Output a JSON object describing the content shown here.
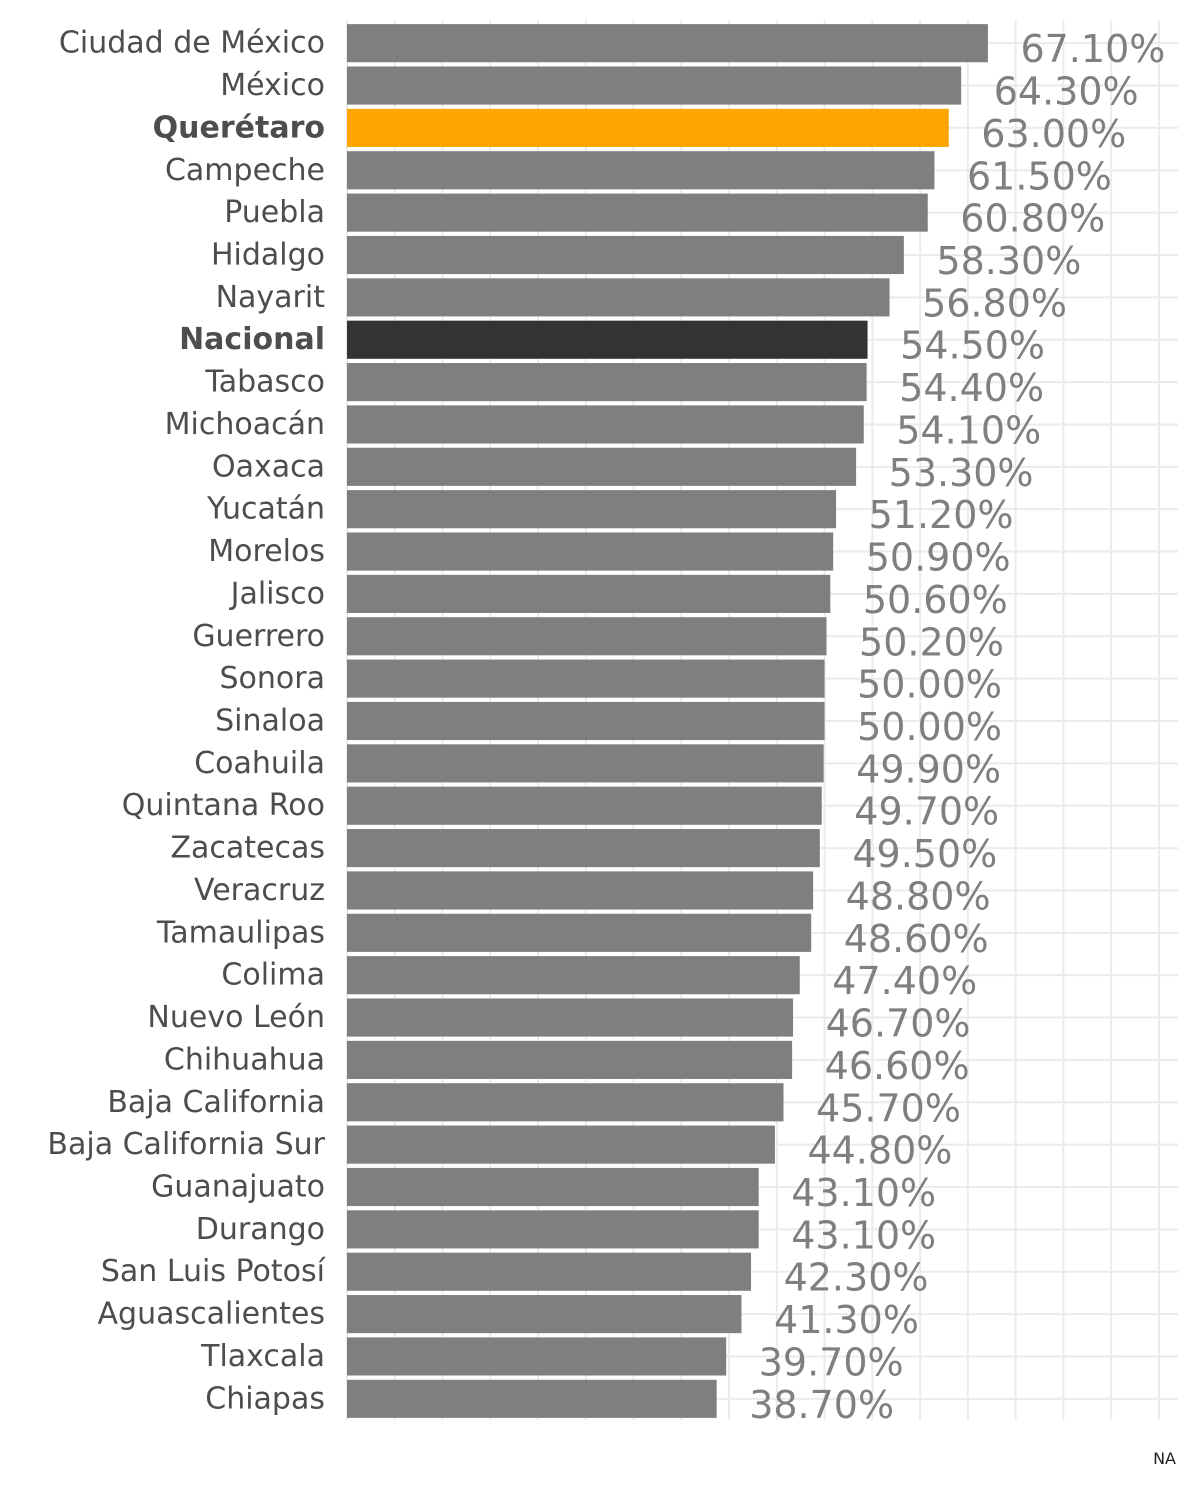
{
  "chart_data": {
    "type": "bar",
    "orientation": "horizontal",
    "xlim": [
      0,
      87
    ],
    "grid": true,
    "categories": [
      "Ciudad de México",
      "México",
      "Querétaro",
      "Campeche",
      "Puebla",
      "Hidalgo",
      "Nayarit",
      "Nacional",
      "Tabasco",
      "Michoacán",
      "Oaxaca",
      "Yucatán",
      "Morelos",
      "Jalisco",
      "Guerrero",
      "Sonora",
      "Sinaloa",
      "Coahuila",
      "Quintana Roo",
      "Zacatecas",
      "Veracruz",
      "Tamaulipas",
      "Colima",
      "Nuevo León",
      "Chihuahua",
      "Baja California",
      "Baja California Sur",
      "Guanajuato",
      "Durango",
      "San Luis Potosí",
      "Aguascalientes",
      "Tlaxcala",
      "Chiapas"
    ],
    "values": [
      67.1,
      64.3,
      63.0,
      61.5,
      60.8,
      58.3,
      56.8,
      54.5,
      54.4,
      54.1,
      53.3,
      51.2,
      50.9,
      50.6,
      50.2,
      50.0,
      50.0,
      49.9,
      49.7,
      49.5,
      48.8,
      48.6,
      47.4,
      46.7,
      46.6,
      45.7,
      44.8,
      43.1,
      43.1,
      42.3,
      41.3,
      39.7,
      38.7
    ],
    "value_labels": [
      "67.10%",
      "64.30%",
      "63.00%",
      "61.50%",
      "60.80%",
      "58.30%",
      "56.80%",
      "54.50%",
      "54.40%",
      "54.10%",
      "53.30%",
      "51.20%",
      "50.90%",
      "50.60%",
      "50.20%",
      "50.00%",
      "50.00%",
      "49.90%",
      "49.70%",
      "49.50%",
      "48.80%",
      "48.60%",
      "47.40%",
      "46.70%",
      "46.60%",
      "45.70%",
      "44.80%",
      "43.10%",
      "43.10%",
      "42.30%",
      "41.30%",
      "39.70%",
      "38.70%"
    ],
    "highlights": {
      "Querétaro": "#ffa500",
      "Nacional": "#333333"
    },
    "colors": {
      "default_bar": "#7f7f7f",
      "default_label": "#4d4d4d",
      "value_label": "#7f7f7f",
      "grid": "#ebebeb"
    },
    "caption": "NA"
  }
}
